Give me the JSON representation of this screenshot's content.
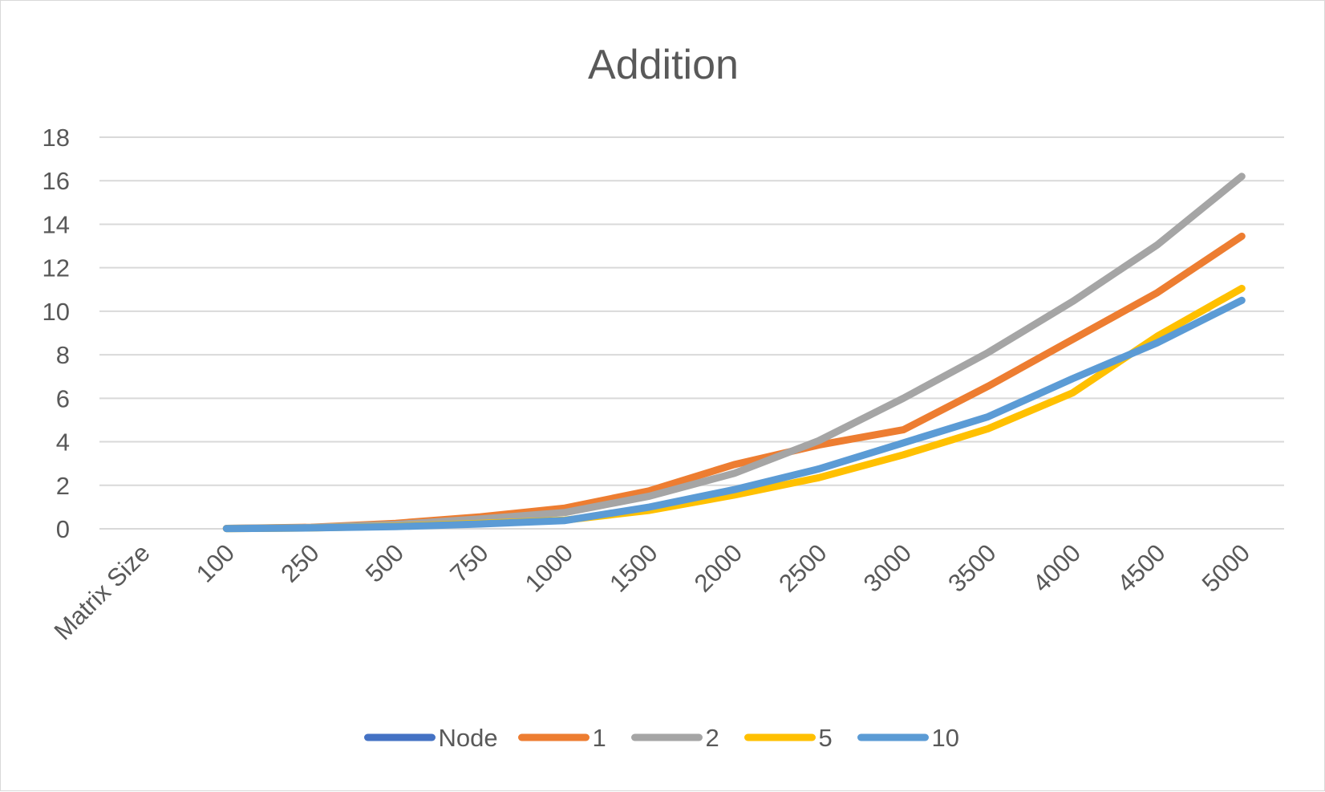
{
  "chart_data": {
    "type": "line",
    "title": "Addition",
    "xlabel": "",
    "ylabel": "",
    "categories": [
      "Matrix Size",
      "100",
      "250",
      "500",
      "750",
      "1000",
      "1500",
      "2000",
      "2500",
      "3000",
      "3500",
      "4000",
      "4500",
      "5000"
    ],
    "yticks": [
      "0",
      "2",
      "4",
      "6",
      "8",
      "10",
      "12",
      "14",
      "16",
      "18"
    ],
    "ylim": [
      0,
      18
    ],
    "grid": true,
    "legend_position": "bottom",
    "series": [
      {
        "name": "Node",
        "color": "#4472C4",
        "values": [
          null,
          null,
          null,
          null,
          null,
          null,
          null,
          null,
          null,
          null,
          null,
          null,
          null,
          null
        ]
      },
      {
        "name": "1",
        "color": "#ED7D31",
        "values": [
          null,
          0.02,
          0.07,
          0.25,
          0.55,
          0.95,
          1.75,
          2.95,
          3.85,
          4.55,
          6.55,
          8.7,
          10.85,
          13.45
        ]
      },
      {
        "name": "2",
        "color": "#A5A5A5",
        "values": [
          null,
          0.02,
          0.06,
          0.2,
          0.45,
          0.75,
          1.5,
          2.55,
          4.05,
          6.0,
          8.1,
          10.45,
          13.05,
          16.2
        ]
      },
      {
        "name": "5",
        "color": "#FFC000",
        "values": [
          null,
          0.01,
          0.04,
          0.12,
          0.25,
          0.4,
          0.85,
          1.55,
          2.35,
          3.4,
          4.6,
          6.25,
          8.85,
          11.05
        ]
      },
      {
        "name": "10",
        "color": "#5B9BD5",
        "values": [
          null,
          0.01,
          0.04,
          0.1,
          0.22,
          0.38,
          1.0,
          1.8,
          2.75,
          3.95,
          5.15,
          6.9,
          8.55,
          10.5
        ]
      }
    ]
  }
}
